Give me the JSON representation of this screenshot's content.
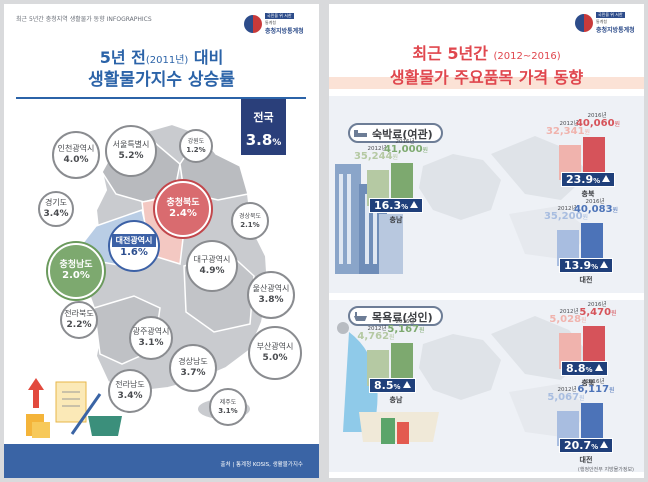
{
  "left": {
    "caption": "최근 5년간 충청지역 생활물가 동향 INFOGRAPHICS",
    "logo": {
      "tag": "국민을 위 서한",
      "small": "통계청",
      "name": "충청지방통계청"
    },
    "title_prefix": "5년 전",
    "title_year": "(2011년)",
    "title_suffix": " 대비",
    "title_line2": "생활물가지수 상승률",
    "national": {
      "label": "전국",
      "value": "3.8",
      "unit": "%"
    },
    "regions": [
      {
        "name": "인천광역시",
        "value": "4.0%"
      },
      {
        "name": "서울특별시",
        "value": "5.2%"
      },
      {
        "name": "강원도",
        "value": "1.2%"
      },
      {
        "name": "경기도",
        "value": "3.4%"
      },
      {
        "name": "충청북도",
        "value": "2.4%"
      },
      {
        "name": "경상북도",
        "value": "2.1%"
      },
      {
        "name": "대전광역시",
        "value": "1.6%"
      },
      {
        "name": "충청남도",
        "value": "2.0%"
      },
      {
        "name": "대구광역시",
        "value": "4.9%"
      },
      {
        "name": "울산광역시",
        "value": "3.8%"
      },
      {
        "name": "전라북도",
        "value": "2.2%"
      },
      {
        "name": "광주광역시",
        "value": "3.1%"
      },
      {
        "name": "부산광역시",
        "value": "5.0%"
      },
      {
        "name": "경상남도",
        "value": "3.7%"
      },
      {
        "name": "전라남도",
        "value": "3.4%"
      },
      {
        "name": "제주도",
        "value": "3.1%"
      }
    ],
    "source": "출처 | 통계청 KOSIS, 생활물가지수"
  },
  "right": {
    "logo": {
      "tag": "국민을 위 서한",
      "small": "통계청",
      "name": "충청지방통계청"
    },
    "title_prefix": "최근 5년간 ",
    "title_year": "(2012~2016)",
    "title_line2": "생활물가 주요품목 가격 동향",
    "sections": [
      {
        "category": "숙박료(여관)",
        "groups": [
          {
            "place": "충남",
            "y1": "2012년",
            "v1": "35,244",
            "y2": "2016년",
            "v2": "41,000",
            "pct": "16.3",
            "color": "green"
          },
          {
            "place": "충북",
            "y1": "2012년",
            "v1": "32,341",
            "y2": "2016년",
            "v2": "40,060",
            "pct": "23.9",
            "color": "red"
          },
          {
            "place": "대전",
            "y1": "2012년",
            "v1": "35,200",
            "y2": "2016년",
            "v2": "40,083",
            "pct": "13.9",
            "color": "blue"
          }
        ]
      },
      {
        "category": "목욕료(성인)",
        "groups": [
          {
            "place": "충남",
            "y1": "2012년",
            "v1": "4,762",
            "y2": "2016년",
            "v2": "5,167",
            "pct": "8.5",
            "color": "green"
          },
          {
            "place": "충북",
            "y1": "2012년",
            "v1": "5,028",
            "y2": "2016년",
            "v2": "5,470",
            "pct": "8.8",
            "color": "red"
          },
          {
            "place": "대전",
            "y1": "2012년",
            "v1": "5,067",
            "y2": "2016년",
            "v2": "6,117",
            "pct": "20.7",
            "color": "blue"
          }
        ]
      }
    ],
    "won": "원",
    "pct_unit": "%",
    "source": "(행정안전부 지방물가정보)"
  },
  "colors": {
    "green_light": "#b5c9a3",
    "green_dark": "#7da96f",
    "red_light": "#f0b3ad",
    "red_dark": "#d6535a",
    "blue_light": "#a8bde0",
    "blue_dark": "#4c73b8",
    "navy": "#1f3f7a"
  }
}
